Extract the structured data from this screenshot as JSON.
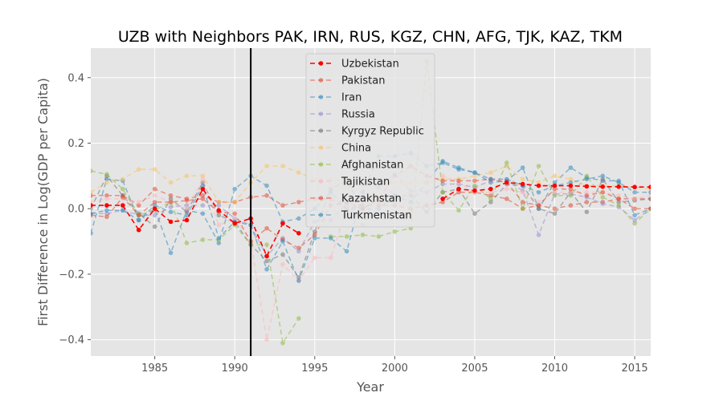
{
  "chart_data": {
    "type": "line",
    "title": "UZB with Neighbors PAK, IRN, RUS, KGZ, CHN, AFG, TJK, KAZ, TKM",
    "xlabel": "Year",
    "ylabel": "First Difference in Log(GDP per Capita)",
    "xlim": [
      1981,
      2016
    ],
    "ylim": [
      -0.45,
      0.49
    ],
    "xticks": [
      1985,
      1990,
      1995,
      2000,
      2005,
      2010,
      2015
    ],
    "yticks": [
      -0.4,
      -0.2,
      0.0,
      0.2,
      0.4
    ],
    "ytick_labels": [
      "−0.4",
      "−0.2",
      "0.0",
      "0.2",
      "0.4"
    ],
    "grid": true,
    "legend_position": "upper-center",
    "vertical_line": {
      "x": 1991,
      "color": "#000000"
    },
    "x": [
      1981,
      1982,
      1983,
      1984,
      1985,
      1986,
      1987,
      1988,
      1989,
      1990,
      1991,
      1992,
      1993,
      1994,
      1995,
      1996,
      1997,
      1998,
      1999,
      2000,
      2001,
      2002,
      2003,
      2004,
      2005,
      2006,
      2007,
      2008,
      2009,
      2010,
      2011,
      2012,
      2013,
      2014,
      2015,
      2016
    ],
    "series": [
      {
        "name": "Uzbekistan",
        "color": "#ff0000",
        "alpha": 1.0,
        "width": 1.6,
        "values": [
          0.01,
          0.01,
          0.01,
          -0.065,
          0.0,
          -0.04,
          -0.035,
          0.06,
          -0.005,
          -0.045,
          -0.03,
          -0.145,
          -0.045,
          -0.075,
          null,
          null,
          null,
          null,
          null,
          null,
          null,
          null,
          0.03,
          0.06,
          0.055,
          0.06,
          0.08,
          0.075,
          0.07,
          0.07,
          0.07,
          0.068,
          0.067,
          0.067,
          0.066,
          0.066
        ]
      },
      {
        "name": "Pakistan",
        "color": "#e24a33",
        "alpha": 0.55,
        "width": 1.5,
        "values": [
          0.04,
          0.04,
          0.04,
          0.01,
          0.06,
          0.04,
          0.03,
          0.04,
          0.02,
          0.02,
          0.035,
          0.04,
          0.01,
          0.02,
          0.03,
          0.03,
          0.0,
          0.01,
          0.01,
          0.01,
          0.0,
          0.01,
          0.02,
          0.05,
          0.05,
          0.04,
          0.03,
          0.0,
          0.01,
          0.0,
          0.01,
          0.02,
          0.02,
          0.03,
          0.03,
          0.03
        ]
      },
      {
        "name": "Iran",
        "color": "#348abd",
        "alpha": 0.55,
        "width": 1.5,
        "values": [
          -0.075,
          0.09,
          0.085,
          -0.035,
          0.0,
          -0.135,
          -0.005,
          -0.015,
          -0.105,
          0.06,
          0.1,
          0.07,
          -0.04,
          -0.03,
          0.0,
          0.05,
          0.0,
          0.0,
          0.0,
          0.04,
          0.02,
          0.08,
          0.145,
          0.125,
          0.11,
          0.08,
          0.085,
          0.125,
          0.0,
          0.08,
          0.125,
          0.095,
          0.085,
          0.085,
          -0.02,
          0.0
        ]
      },
      {
        "name": "Russia",
        "color": "#988ed5",
        "alpha": 0.55,
        "width": 1.5,
        "values": [
          -0.015,
          -0.015,
          -0.005,
          -0.02,
          -0.02,
          0.005,
          0.01,
          0.01,
          0.01,
          -0.03,
          -0.05,
          -0.145,
          -0.09,
          -0.13,
          -0.04,
          -0.035,
          0.015,
          -0.05,
          0.065,
          0.105,
          0.055,
          0.05,
          0.075,
          0.075,
          0.065,
          0.085,
          0.085,
          0.055,
          -0.08,
          0.045,
          0.045,
          0.035,
          0.015,
          0.005,
          -0.035,
          0.0
        ]
      },
      {
        "name": "Kyrgyz Republic",
        "color": "#777777",
        "alpha": 0.55,
        "width": 1.5,
        "values": [
          0.0,
          0.1,
          0.04,
          -0.015,
          -0.055,
          0.03,
          -0.01,
          0.08,
          -0.02,
          -0.04,
          -0.11,
          -0.16,
          -0.14,
          -0.21,
          -0.07,
          0.06,
          0.085,
          0.0,
          0.03,
          0.04,
          0.04,
          -0.01,
          0.05,
          0.06,
          -0.015,
          0.02,
          0.075,
          0.07,
          0.0,
          -0.015,
          0.05,
          -0.01,
          0.09,
          0.02,
          0.025,
          0.03
        ]
      },
      {
        "name": "China",
        "color": "#fbc15e",
        "alpha": 0.55,
        "width": 1.5,
        "values": [
          0.05,
          0.08,
          0.09,
          0.12,
          0.12,
          0.08,
          0.1,
          0.1,
          0.02,
          0.02,
          0.08,
          0.13,
          0.13,
          0.11,
          0.09,
          0.09,
          0.08,
          0.07,
          0.07,
          0.08,
          0.08,
          0.08,
          0.09,
          0.09,
          0.1,
          0.11,
          0.13,
          0.09,
          0.08,
          0.1,
          0.09,
          0.07,
          0.07,
          0.07,
          0.065,
          0.06
        ]
      },
      {
        "name": "Afghanistan",
        "color": "#8eba42",
        "alpha": 0.55,
        "width": 1.5,
        "values": [
          0.115,
          0.105,
          0.06,
          -0.02,
          -0.005,
          0.02,
          -0.105,
          -0.095,
          -0.095,
          -0.05,
          -0.11,
          -0.11,
          -0.41,
          -0.335,
          null,
          -0.085,
          -0.085,
          -0.08,
          -0.085,
          -0.07,
          -0.06,
          0.45,
          0.05,
          -0.005,
          0.07,
          0.03,
          0.14,
          0.0,
          0.13,
          0.04,
          0.04,
          0.1,
          0.035,
          0.01,
          -0.045,
          0.0
        ]
      },
      {
        "name": "Tajikistan",
        "color": "#ffb5b8",
        "alpha": 0.55,
        "width": 1.5,
        "values": [
          0.02,
          0.03,
          0.03,
          0.02,
          0.04,
          0.02,
          0.0,
          0.09,
          -0.05,
          -0.03,
          -0.1,
          -0.4,
          -0.17,
          -0.22,
          -0.15,
          -0.15,
          0.0,
          0.03,
          0.03,
          0.06,
          0.08,
          0.08,
          0.1,
          0.08,
          0.05,
          0.05,
          0.06,
          0.05,
          0.02,
          0.05,
          0.05,
          0.05,
          0.05,
          0.04,
          0.03,
          0.04
        ]
      },
      {
        "name": "Kazakhstan",
        "color": "#e24a33",
        "alpha": 0.55,
        "width": 1.5,
        "values": [
          -0.02,
          -0.025,
          0.035,
          -0.02,
          0.02,
          0.02,
          0.025,
          0.03,
          -0.01,
          -0.015,
          -0.1,
          -0.06,
          -0.095,
          -0.12,
          -0.08,
          0.01,
          0.02,
          0.0,
          0.03,
          0.1,
          0.13,
          0.1,
          0.085,
          0.085,
          0.085,
          0.09,
          0.08,
          0.02,
          0.01,
          0.06,
          0.06,
          0.04,
          0.05,
          0.03,
          0.0,
          0.0
        ]
      },
      {
        "name": "Turkmenistan",
        "color": "#348abd",
        "alpha": 0.55,
        "width": 1.5,
        "values": [
          -0.015,
          -0.005,
          -0.005,
          -0.035,
          0.01,
          -0.01,
          -0.02,
          0.07,
          -0.09,
          -0.04,
          -0.05,
          -0.185,
          -0.1,
          -0.22,
          -0.09,
          -0.09,
          -0.13,
          0.05,
          0.16,
          0.16,
          0.17,
          0.13,
          0.14,
          0.12,
          0.11,
          0.09,
          0.09,
          0.07,
          0.05,
          0.07,
          0.08,
          0.09,
          0.1,
          0.08,
          0.05,
          0.05
        ]
      }
    ]
  }
}
